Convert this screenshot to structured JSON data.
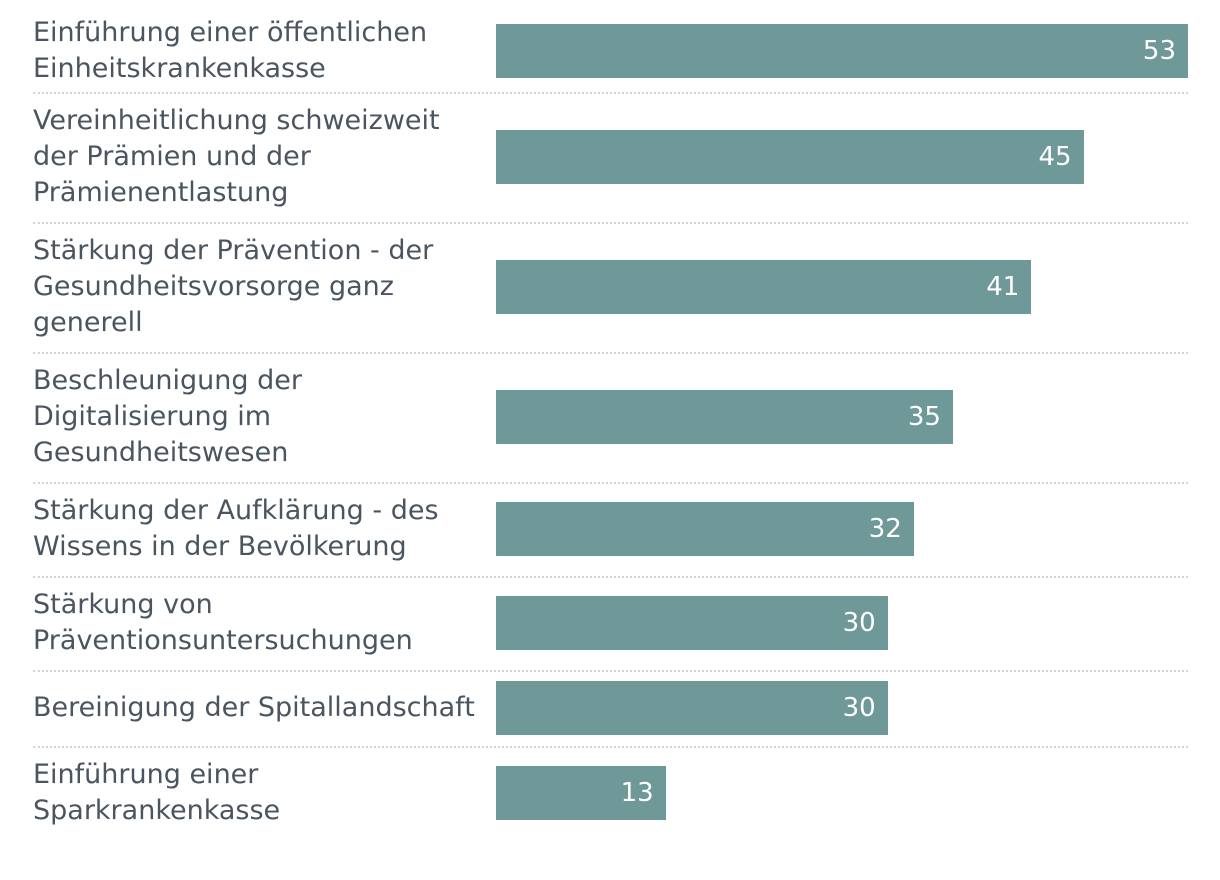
{
  "chart_data": {
    "type": "bar",
    "orientation": "horizontal",
    "title": "",
    "xlabel": "",
    "ylabel": "",
    "xlim": [
      0,
      53
    ],
    "grid": false,
    "bar_color": "#6f9999",
    "label_color": "#4a5560",
    "value_color": "#ffffff",
    "categories": [
      "Einführung einer öffentlichen Einheitskrankenkasse",
      "Vereinheitlichung schweizweit der Prämien und der Prämienentlastung",
      "Stärkung der Prävention - der Gesundheitsvorsorge ganz generell",
      "Beschleunigung der Digitalisierung im Gesundheitswesen",
      "Stärkung der Aufklärung - des Wissens in der Bevölkerung",
      "Stärkung von Präventionsuntersuchungen",
      "Bereinigung der Spitallandschaft",
      "Einführung einer Sparkrankenkasse"
    ],
    "values": [
      53,
      45,
      41,
      35,
      32,
      30,
      30,
      13
    ]
  }
}
